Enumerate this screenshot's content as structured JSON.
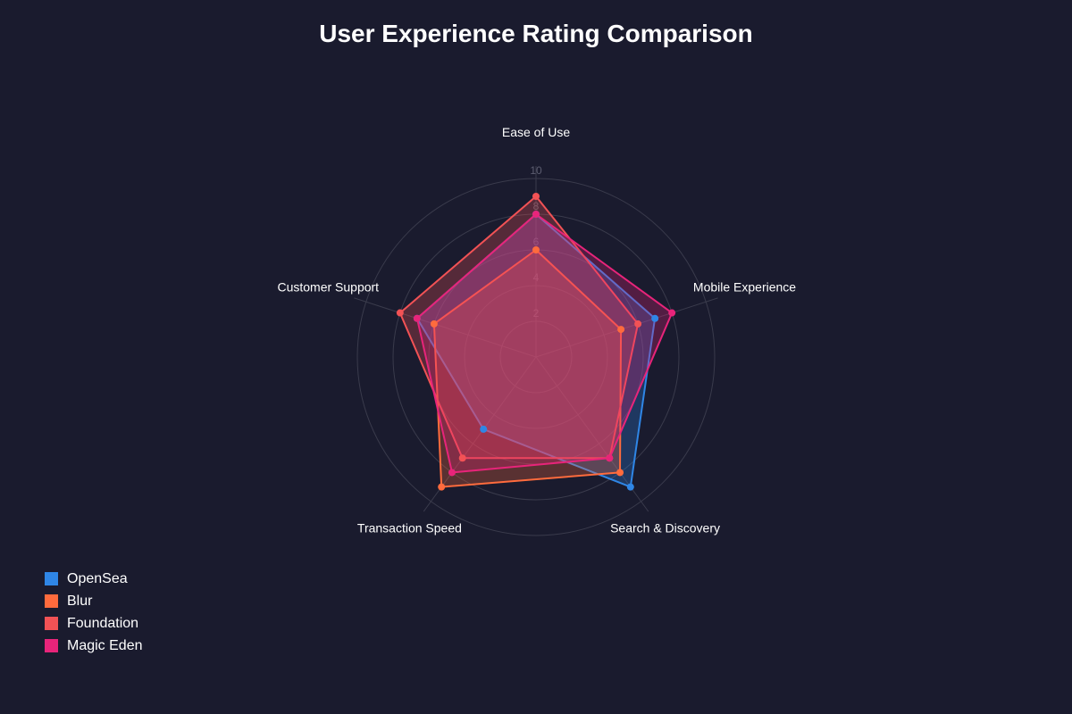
{
  "chart_data": {
    "type": "radar",
    "title": "User Experience Rating Comparison",
    "axes": [
      "Ease of Use",
      "Mobile Experience",
      "Search & Discovery",
      "Transaction Speed",
      "Customer Support"
    ],
    "r_ticks": [
      "2",
      "4",
      "6",
      "8",
      "10"
    ],
    "r_range": [
      0,
      10
    ],
    "grid": true,
    "legend_position": "bottom-left",
    "series": [
      {
        "name": "OpenSea",
        "color": "#2f86e6",
        "values": [
          8,
          7,
          9,
          5,
          7
        ]
      },
      {
        "name": "Blur",
        "color": "#ff6b3d",
        "values": [
          6,
          5,
          8,
          9,
          6
        ]
      },
      {
        "name": "Foundation",
        "color": "#f25255",
        "values": [
          9,
          6,
          7,
          7,
          8
        ]
      },
      {
        "name": "Magic Eden",
        "color": "#e8247a",
        "values": [
          8,
          8,
          7,
          8,
          7
        ]
      }
    ]
  }
}
